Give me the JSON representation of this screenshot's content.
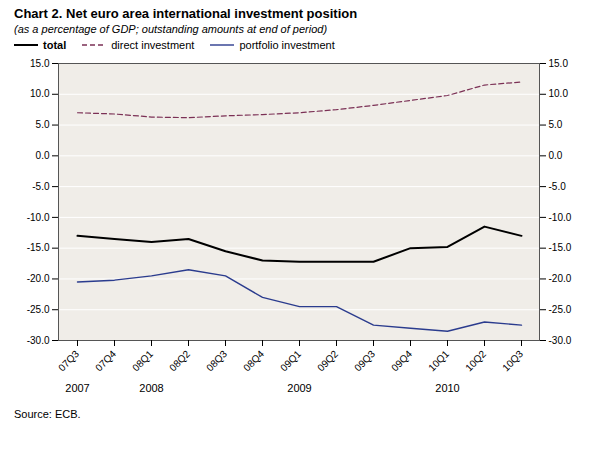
{
  "chart_data": {
    "type": "line",
    "title": "Chart 2. Net euro area international investment position",
    "subtitle": "(as a percentage of GDP; outstanding amounts at end of period)",
    "source": "Source: ECB.",
    "categories": [
      "07Q3",
      "07Q4",
      "08Q1",
      "08Q2",
      "08Q3",
      "08Q4",
      "09Q1",
      "09Q2",
      "09Q3",
      "09Q4",
      "10Q1",
      "10Q2",
      "10Q3"
    ],
    "series": [
      {
        "name": "total",
        "color": "#000000",
        "line_style": "solid",
        "values": [
          -13.0,
          -13.5,
          -14.0,
          -13.5,
          -15.5,
          -17.0,
          -17.2,
          -17.2,
          -17.2,
          -15.0,
          -14.8,
          -11.5,
          -13.0
        ]
      },
      {
        "name": "direct investment",
        "color": "#7B3055",
        "line_style": "dashed",
        "values": [
          7.0,
          6.8,
          6.3,
          6.2,
          6.5,
          6.7,
          7.0,
          7.5,
          8.2,
          9.0,
          9.8,
          11.5,
          12.0
        ]
      },
      {
        "name": "portfolio investment",
        "color": "#2B3C8E",
        "line_style": "solid",
        "values": [
          -20.5,
          -20.2,
          -19.5,
          -18.5,
          -19.5,
          -23.0,
          -24.5,
          -24.5,
          -27.5,
          -28.0,
          -28.5,
          -27.0,
          -27.5
        ]
      }
    ],
    "annotations": [
      {
        "text": "2007",
        "x": "07Q3"
      },
      {
        "text": "2008",
        "x": "08Q1"
      },
      {
        "text": "2009",
        "x": "09Q1"
      },
      {
        "text": "2010",
        "x": "10Q1"
      }
    ],
    "ylim": [
      -30.0,
      15.0
    ],
    "yticks": [
      {
        "value": -30,
        "label": "-30.0"
      },
      {
        "value": -25,
        "label": "-25.0"
      },
      {
        "value": -20,
        "label": "-20.0"
      },
      {
        "value": -15,
        "label": "-15.0"
      },
      {
        "value": -10,
        "label": "-10.0"
      },
      {
        "value": -5,
        "label": "-5.0"
      },
      {
        "value": 0,
        "label": "0.0"
      },
      {
        "value": 5,
        "label": "5.0"
      },
      {
        "value": 10,
        "label": "10.0"
      },
      {
        "value": 15,
        "label": "15.0"
      }
    ],
    "grid": true,
    "legend": "top"
  }
}
